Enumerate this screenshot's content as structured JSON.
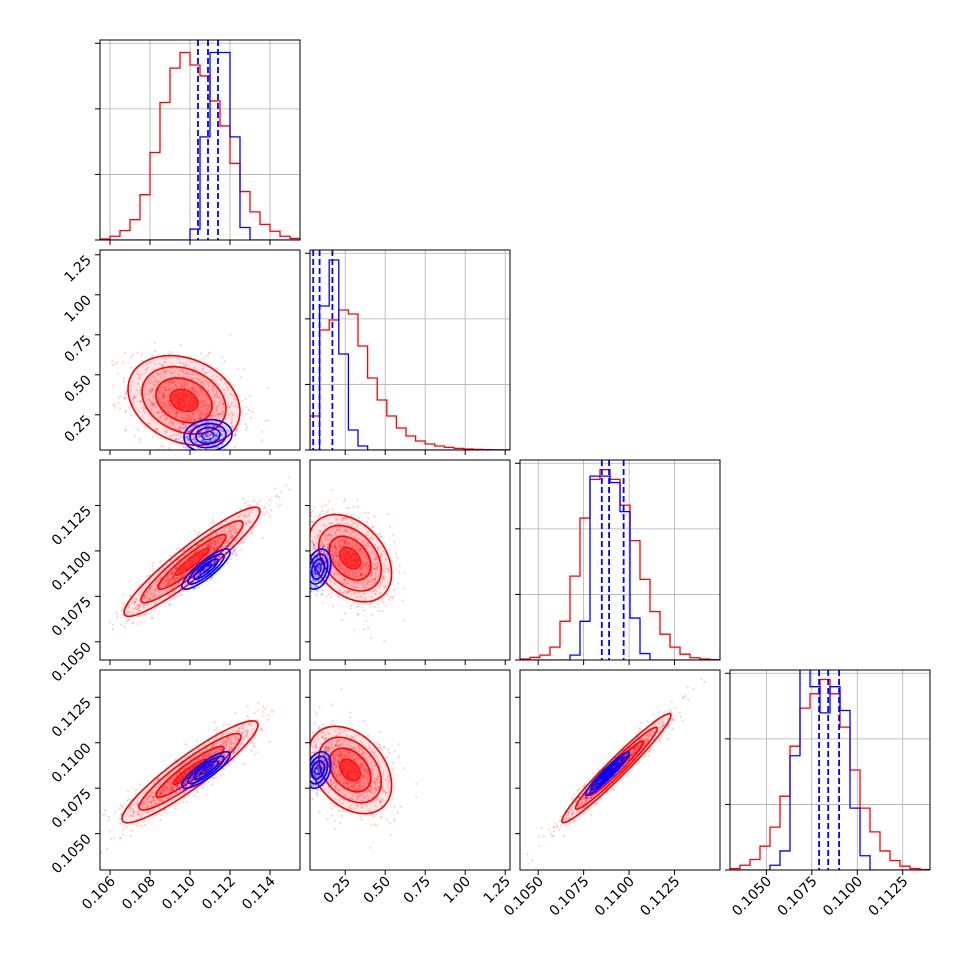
{
  "colors": {
    "series_a": "#ff0000",
    "series_b": "#0000ff",
    "grid": "#b0b0b0"
  },
  "chart_data": {
    "type": "corner",
    "grid": true,
    "series": [
      {
        "color": "#ff0000",
        "style": "step-histogram + filled contours + scatter"
      },
      {
        "color": "#0000ff",
        "style": "step-histogram + contours + scatter, dashed quantile lines"
      }
    ],
    "params": [
      {
        "xlim": [
          0.1055,
          0.1155
        ],
        "ticks": [
          0.106,
          0.108,
          0.11,
          0.112,
          0.114
        ],
        "tick_labels": [
          "0.106",
          "0.108",
          "0.110",
          "0.112",
          "0.114"
        ]
      },
      {
        "xlim": [
          0.03,
          1.28
        ],
        "ticks": [
          0.25,
          0.5,
          0.75,
          1.0,
          1.25
        ],
        "tick_labels": [
          "0.25",
          "0.50",
          "0.75",
          "1.00",
          "1.25"
        ]
      },
      {
        "xlim": [
          0.104,
          0.115
        ],
        "ticks": [
          0.105,
          0.1075,
          0.11,
          0.1125
        ],
        "tick_labels": [
          "0.1050",
          "0.1075",
          "0.1100",
          "0.1125"
        ]
      },
      {
        "xlim": [
          0.103,
          0.114
        ],
        "ticks": [
          0.105,
          0.1075,
          0.11,
          0.1125
        ],
        "tick_labels": [
          "0.1050",
          "0.1075",
          "0.1100",
          "0.1125"
        ]
      }
    ],
    "histograms": [
      {
        "param": 0,
        "edges": [
          0.1055,
          0.106,
          0.1065,
          0.107,
          0.1075,
          0.108,
          0.1085,
          0.109,
          0.1095,
          0.11,
          0.1105,
          0.111,
          0.1115,
          0.112,
          0.1125,
          0.113,
          0.1135,
          0.114,
          0.1145,
          0.115,
          0.1155
        ],
        "series_a": [
          0.3,
          1.2,
          3.0,
          6.5,
          14.5,
          28.0,
          44.0,
          55.0,
          60.0,
          56.0,
          52.5,
          44.5,
          36.5,
          24.5,
          15.5,
          9.0,
          5.0,
          2.8,
          1.2,
          0.5
        ],
        "series_b": [
          0,
          0,
          0,
          0,
          0,
          0,
          0,
          0,
          0,
          3.5,
          33.0,
          60.0,
          60.0,
          33.0,
          4.0,
          0,
          0,
          0,
          0,
          0
        ],
        "ylim": [
          0,
          64
        ],
        "b_quantiles": [
          0.1104,
          0.1109,
          0.1114
        ]
      },
      {
        "param": 1,
        "edges": [
          0.03,
          0.09,
          0.15,
          0.21,
          0.27,
          0.33,
          0.39,
          0.45,
          0.51,
          0.57,
          0.63,
          0.69,
          0.75,
          0.81,
          0.87,
          0.93,
          0.99,
          1.05,
          1.11,
          1.17,
          1.23,
          1.28
        ],
        "series_a": [
          17.0,
          60.0,
          65.0,
          70.0,
          68.0,
          52.0,
          36.0,
          25.0,
          17.0,
          11.0,
          7.0,
          4.5,
          3.0,
          2.0,
          1.3,
          0.8,
          0.5,
          0.3,
          0.2,
          0.1,
          0.05
        ],
        "series_b": [
          0,
          72.0,
          95.0,
          48.0,
          10.0,
          2.0,
          0,
          0,
          0,
          0,
          0,
          0,
          0,
          0,
          0,
          0,
          0,
          0,
          0,
          0,
          0
        ],
        "ylim": [
          0,
          100
        ],
        "b_quantiles": [
          0.05,
          0.09,
          0.17
        ]
      },
      {
        "param": 2,
        "edges": [
          0.104,
          0.10455,
          0.1051,
          0.10565,
          0.1062,
          0.10675,
          0.1073,
          0.10785,
          0.1084,
          0.10895,
          0.1095,
          0.11005,
          0.1106,
          0.11115,
          0.1117,
          0.11225,
          0.1128,
          0.11335,
          0.1139,
          0.11445,
          0.115
        ],
        "series_a": [
          0.3,
          0.8,
          1.5,
          4.0,
          12.0,
          26.0,
          44.0,
          56.0,
          59.0,
          56.0,
          48.0,
          37.0,
          25.0,
          15.0,
          8.0,
          4.0,
          1.8,
          0.7,
          0.3,
          0.1
        ],
        "series_b": [
          0,
          0,
          0,
          0,
          0,
          1.5,
          12.0,
          57.0,
          57.0,
          55.0,
          46.0,
          13.0,
          2.0,
          0,
          0,
          0,
          0,
          0,
          0,
          0
        ],
        "ylim": [
          0,
          62
        ],
        "b_quantiles": [
          0.1085,
          0.1089,
          0.1097
        ]
      },
      {
        "param": 3,
        "edges": [
          0.103,
          0.10355,
          0.1041,
          0.10465,
          0.1052,
          0.10575,
          0.1063,
          0.10685,
          0.1074,
          0.10795,
          0.1085,
          0.10905,
          0.1096,
          0.11015,
          0.1107,
          0.11125,
          0.1118,
          0.11235,
          0.1129,
          0.11345,
          0.114
        ],
        "series_a": [
          0.3,
          1.0,
          2.2,
          5.0,
          9.0,
          15.5,
          26.0,
          34.0,
          37.0,
          40.0,
          37.0,
          30.0,
          21.0,
          13.0,
          8.0,
          4.0,
          2.0,
          0.8,
          0.3,
          0.1
        ],
        "series_b": [
          0,
          0,
          0,
          0,
          1.0,
          4.0,
          24.0,
          45.0,
          38.5,
          33.0,
          38.5,
          33.5,
          13.0,
          3.0,
          0,
          0,
          0,
          0,
          0,
          0
        ],
        "ylim": [
          0,
          42
        ],
        "b_quantiles": [
          0.1079,
          0.1084,
          0.109
        ]
      }
    ],
    "pairs": [
      {
        "x": 0,
        "y": 1,
        "a": {
          "mean": [
            0.1097,
            0.34
          ],
          "sd": [
            0.0014,
            0.14
          ],
          "rho": -0.25
        },
        "b": {
          "mean": [
            0.1109,
            0.12
          ],
          "sd": [
            0.0006,
            0.05
          ],
          "rho": 0.1
        }
      },
      {
        "x": 0,
        "y": 2,
        "a": {
          "mean": [
            0.1101,
            0.1094
          ],
          "sd": [
            0.0017,
            0.0015
          ],
          "rho": 0.93
        },
        "b": {
          "mean": [
            0.1108,
            0.109
          ],
          "sd": [
            0.0006,
            0.00055
          ],
          "rho": 0.85
        }
      },
      {
        "x": 1,
        "y": 2,
        "a": {
          "mean": [
            0.28,
            0.1096
          ],
          "sd": [
            0.13,
            0.0012
          ],
          "rho": -0.35
        },
        "b": {
          "mean": [
            0.08,
            0.109
          ],
          "sd": [
            0.04,
            0.00055
          ],
          "rho": 0.3
        }
      },
      {
        "x": 0,
        "y": 3,
        "a": {
          "mean": [
            0.11,
            0.1084
          ],
          "sd": [
            0.0017,
            0.0014
          ],
          "rho": 0.92
        },
        "b": {
          "mean": [
            0.1108,
            0.1085
          ],
          "sd": [
            0.0006,
            0.0005
          ],
          "rho": 0.85
        }
      },
      {
        "x": 1,
        "y": 3,
        "a": {
          "mean": [
            0.28,
            0.1085
          ],
          "sd": [
            0.13,
            0.0012
          ],
          "rho": -0.35
        },
        "b": {
          "mean": [
            0.08,
            0.1085
          ],
          "sd": [
            0.04,
            0.0005
          ],
          "rho": 0.3
        }
      },
      {
        "x": 2,
        "y": 3,
        "a": {
          "mean": [
            0.1093,
            0.1086
          ],
          "sd": [
            0.0015,
            0.0015
          ],
          "rho": 0.97
        },
        "b": {
          "mean": [
            0.1088,
            0.1083
          ],
          "sd": [
            0.0006,
            0.0006
          ],
          "rho": 0.95
        }
      }
    ]
  }
}
